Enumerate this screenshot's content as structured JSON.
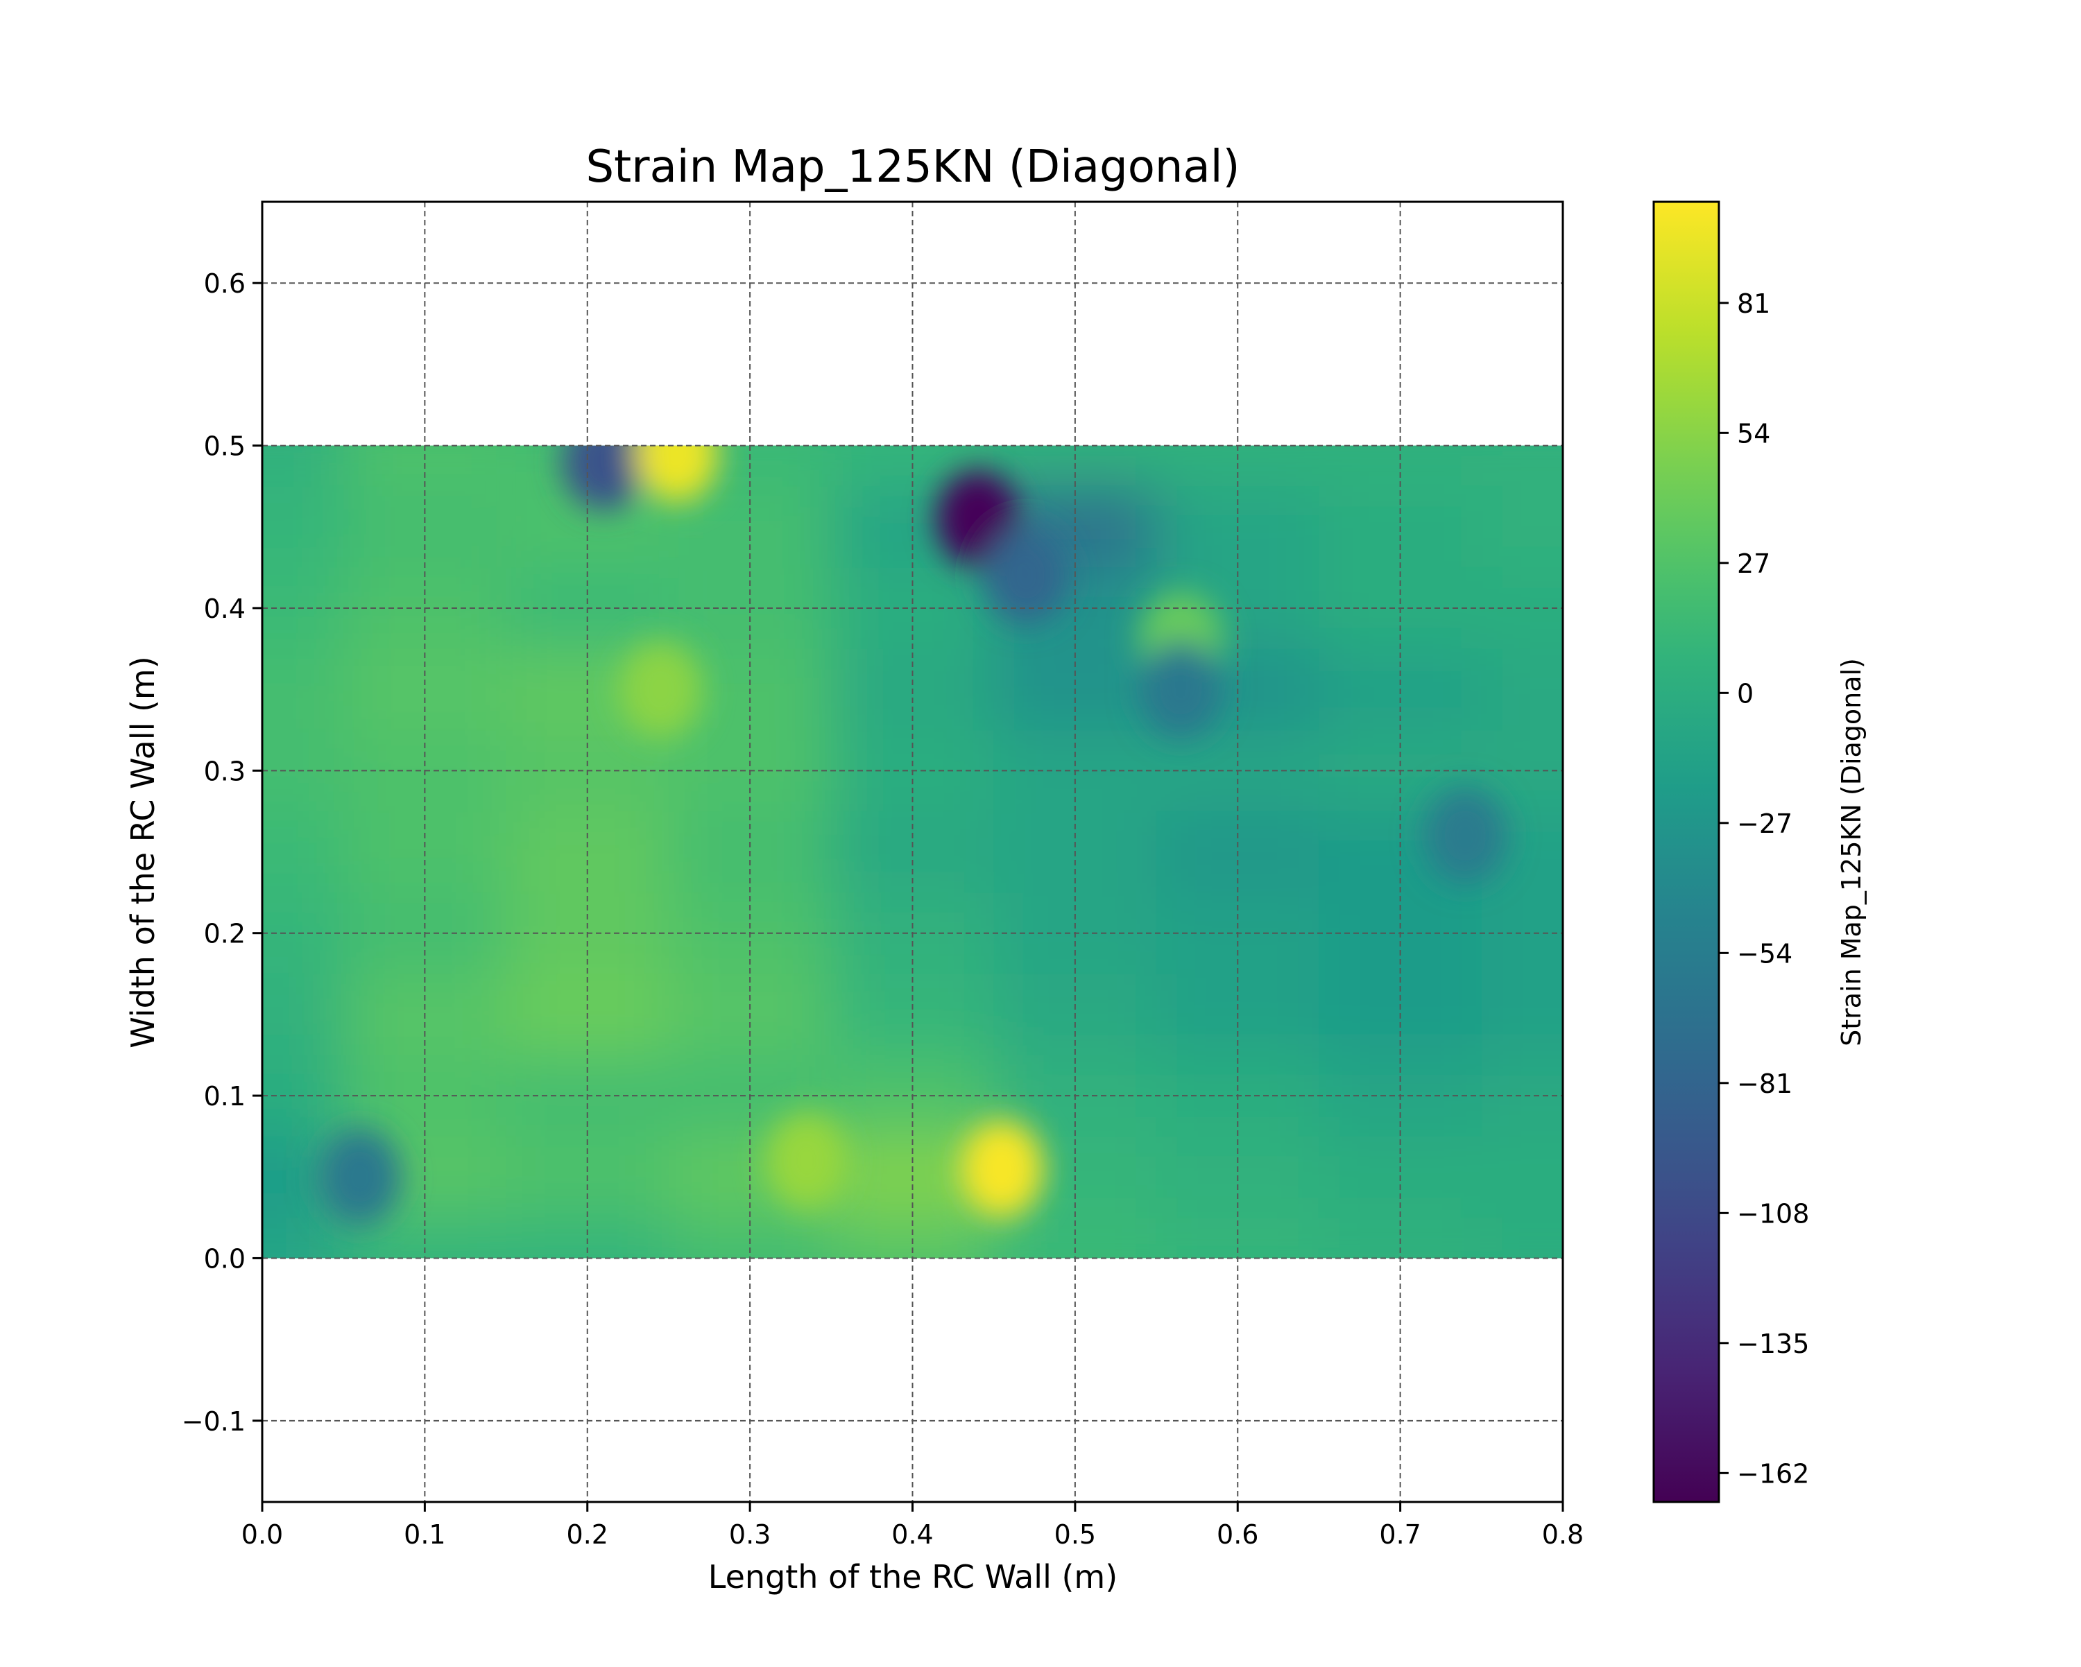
{
  "chart_data": {
    "type": "heatmap",
    "title": "Strain Map_125KN (Diagonal)",
    "xlabel": "Length of the RC Wall (m)",
    "ylabel": "Width of the RC Wall (m)",
    "colorbar_label": "Strain Map_125KN (Diagonal)",
    "colormap": "viridis",
    "xlim": [
      0.0,
      0.8
    ],
    "ylim": [
      -0.15,
      0.65
    ],
    "x_ticks": [
      0.0,
      0.1,
      0.2,
      0.3,
      0.4,
      0.5,
      0.6,
      0.7,
      0.8
    ],
    "x_tick_labels": [
      "0.0",
      "0.1",
      "0.2",
      "0.3",
      "0.4",
      "0.5",
      "0.6",
      "0.7",
      "0.8"
    ],
    "y_ticks": [
      -0.1,
      0.0,
      0.1,
      0.2,
      0.3,
      0.4,
      0.5,
      0.6
    ],
    "y_tick_labels": [
      "−0.1",
      "0.0",
      "0.1",
      "0.2",
      "0.3",
      "0.4",
      "0.5",
      "0.6"
    ],
    "grid": true,
    "field_extent": {
      "x": [
        0.0,
        0.8
      ],
      "y": [
        0.0,
        0.5
      ]
    },
    "color_range": [
      -168,
      102
    ],
    "colorbar_ticks": [
      81,
      54,
      27,
      0,
      -27,
      -54,
      -81,
      -108,
      -135,
      -162
    ],
    "colorbar_tick_labels": [
      "81",
      "54",
      "27",
      "0",
      "−27",
      "−54",
      "−81",
      "−108",
      "−135",
      "−162"
    ],
    "grid_x": [
      0.0,
      0.1,
      0.2,
      0.3,
      0.4,
      0.5,
      0.6,
      0.7,
      0.8
    ],
    "grid_y": [
      0.5,
      0.45,
      0.4,
      0.35,
      0.3,
      0.25,
      0.2,
      0.15,
      0.1,
      0.05,
      0.0
    ],
    "values": [
      [
        5,
        25,
        20,
        15,
        10,
        5,
        5,
        5,
        5
      ],
      [
        10,
        20,
        25,
        20,
        -10,
        -70,
        -10,
        0,
        5
      ],
      [
        15,
        25,
        15,
        20,
        0,
        -30,
        -10,
        0,
        0
      ],
      [
        20,
        30,
        35,
        25,
        -5,
        -30,
        -30,
        -15,
        -5
      ],
      [
        20,
        25,
        30,
        25,
        0,
        -10,
        -10,
        -5,
        -5
      ],
      [
        15,
        25,
        35,
        20,
        -5,
        -10,
        -25,
        -20,
        -15
      ],
      [
        10,
        20,
        35,
        25,
        5,
        -10,
        -15,
        -20,
        -15
      ],
      [
        5,
        30,
        40,
        30,
        10,
        -5,
        -15,
        -20,
        -15
      ],
      [
        0,
        25,
        20,
        20,
        25,
        5,
        0,
        -10,
        -5
      ],
      [
        -20,
        30,
        25,
        35,
        50,
        10,
        5,
        0,
        0
      ],
      [
        -10,
        10,
        10,
        20,
        30,
        15,
        10,
        5,
        0
      ]
    ],
    "hotspots": [
      {
        "x": 0.44,
        "y": 0.455,
        "value": -165
      },
      {
        "x": 0.21,
        "y": 0.49,
        "value": -100
      },
      {
        "x": 0.255,
        "y": 0.495,
        "value": 95
      },
      {
        "x": 0.455,
        "y": 0.055,
        "value": 100
      },
      {
        "x": 0.06,
        "y": 0.05,
        "value": -60
      },
      {
        "x": 0.335,
        "y": 0.06,
        "value": 60
      },
      {
        "x": 0.565,
        "y": 0.38,
        "value": 40
      },
      {
        "x": 0.565,
        "y": 0.35,
        "value": -60
      },
      {
        "x": 0.245,
        "y": 0.35,
        "value": 55
      },
      {
        "x": 0.74,
        "y": 0.26,
        "value": -55
      },
      {
        "x": 0.47,
        "y": 0.42,
        "value": -80
      }
    ]
  }
}
